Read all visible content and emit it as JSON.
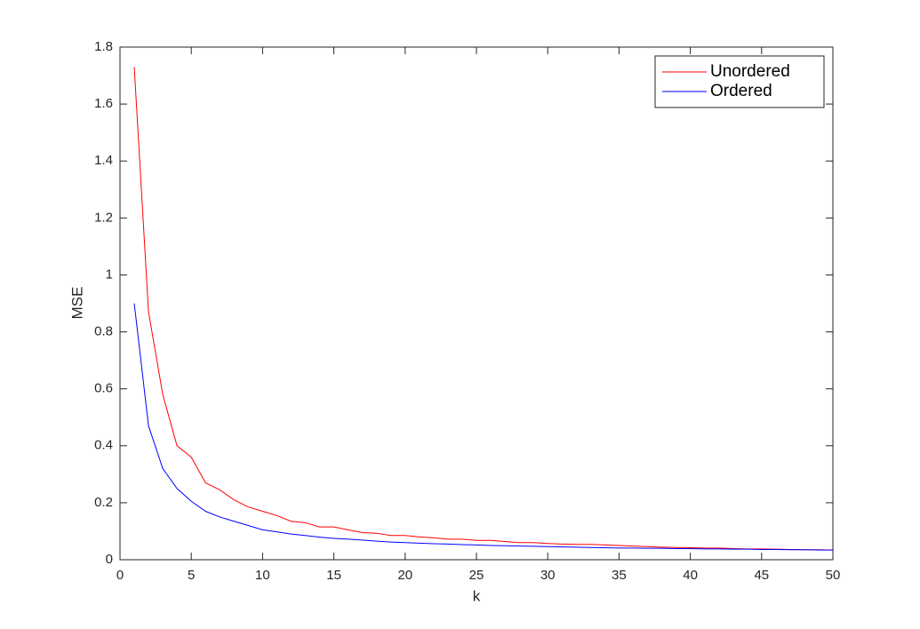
{
  "chart_data": {
    "type": "line",
    "xlabel": "k",
    "ylabel": "MSE",
    "x": [
      1,
      2,
      3,
      4,
      5,
      6,
      7,
      8,
      9,
      10,
      11,
      12,
      13,
      14,
      15,
      16,
      17,
      18,
      19,
      20,
      21,
      22,
      23,
      24,
      25,
      26,
      27,
      28,
      29,
      30,
      31,
      32,
      33,
      34,
      35,
      36,
      37,
      38,
      39,
      40,
      41,
      42,
      43,
      44,
      45,
      46,
      47,
      48,
      49,
      50
    ],
    "series": [
      {
        "name": "Unordered",
        "color": "#ff0000",
        "values": [
          1.73,
          0.87,
          0.58,
          0.4,
          0.36,
          0.27,
          0.245,
          0.21,
          0.185,
          0.17,
          0.155,
          0.135,
          0.13,
          0.115,
          0.115,
          0.105,
          0.095,
          0.093,
          0.085,
          0.085,
          0.08,
          0.077,
          0.072,
          0.072,
          0.068,
          0.068,
          0.064,
          0.06,
          0.06,
          0.057,
          0.055,
          0.054,
          0.054,
          0.052,
          0.05,
          0.048,
          0.046,
          0.044,
          0.043,
          0.042,
          0.041,
          0.041,
          0.039,
          0.038,
          0.038,
          0.037,
          0.036,
          0.035,
          0.035,
          0.034
        ]
      },
      {
        "name": "Ordered",
        "color": "#0000ff",
        "values": [
          0.9,
          0.47,
          0.32,
          0.25,
          0.205,
          0.17,
          0.15,
          0.135,
          0.12,
          0.105,
          0.098,
          0.09,
          0.085,
          0.079,
          0.075,
          0.072,
          0.069,
          0.065,
          0.062,
          0.06,
          0.058,
          0.056,
          0.055,
          0.053,
          0.052,
          0.05,
          0.049,
          0.048,
          0.047,
          0.046,
          0.045,
          0.044,
          0.043,
          0.042,
          0.041,
          0.041,
          0.04,
          0.04,
          0.039,
          0.039,
          0.038,
          0.038,
          0.037,
          0.037,
          0.036,
          0.036,
          0.035,
          0.035,
          0.034,
          0.034
        ]
      }
    ],
    "xlim": [
      0,
      50
    ],
    "xticks": [
      0,
      5,
      10,
      15,
      20,
      25,
      30,
      35,
      40,
      45,
      50
    ],
    "ylim": [
      0,
      1.8
    ],
    "yticks": [
      0,
      0.2,
      0.4,
      0.6,
      0.8,
      1,
      1.2,
      1.4,
      1.6,
      1.8
    ],
    "grid": false,
    "legend": "northeast"
  }
}
